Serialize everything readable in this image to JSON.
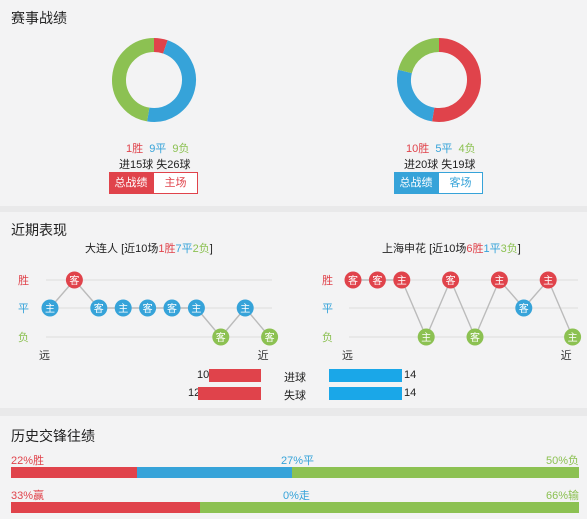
{
  "sections": {
    "record": "赛事战绩",
    "recent": "近期表现",
    "h2h": "历史交锋往绩"
  },
  "left": {
    "wins": "1胜",
    "draws": "9平",
    "losses": "9负",
    "goals": "进15球 失26球",
    "tab_active": "总战绩",
    "tab_other": "主场",
    "donut": {
      "win": 1,
      "draw": 9,
      "loss": 9
    }
  },
  "right": {
    "wins": "10胜",
    "draws": "5平",
    "losses": "4负",
    "goals": "进20球 失19球",
    "tab_active": "总战绩",
    "tab_other": "客场",
    "donut": {
      "win": 10,
      "draw": 5,
      "loss": 4
    }
  },
  "recent": {
    "left_team": {
      "name": "大连人",
      "prefix": "[近10场",
      "w": "1胜",
      "d": "7平",
      "l": "2负",
      "suffix": "]"
    },
    "right_team": {
      "name": "上海申花",
      "prefix": "[近10场",
      "w": "6胜",
      "d": "1平",
      "l": "3负",
      "suffix": "]"
    },
    "y_labels": {
      "win": "胜",
      "draw": "平",
      "loss": "负"
    },
    "far": "远",
    "near": "近",
    "left_results": [
      {
        "r": "平",
        "t": "主"
      },
      {
        "r": "胜",
        "t": "客"
      },
      {
        "r": "平",
        "t": "客"
      },
      {
        "r": "平",
        "t": "主"
      },
      {
        "r": "平",
        "t": "客"
      },
      {
        "r": "平",
        "t": "客"
      },
      {
        "r": "平",
        "t": "主"
      },
      {
        "r": "负",
        "t": "客"
      },
      {
        "r": "平",
        "t": "主"
      },
      {
        "r": "负",
        "t": "客"
      }
    ],
    "right_results": [
      {
        "r": "胜",
        "t": "客"
      },
      {
        "r": "胜",
        "t": "客"
      },
      {
        "r": "胜",
        "t": "主"
      },
      {
        "r": "负",
        "t": "主"
      },
      {
        "r": "胜",
        "t": "客"
      },
      {
        "r": "负",
        "t": "客"
      },
      {
        "r": "胜",
        "t": "主"
      },
      {
        "r": "平",
        "t": "客"
      },
      {
        "r": "胜",
        "t": "主"
      },
      {
        "r": "负",
        "t": "主"
      }
    ],
    "scored_label": "进球",
    "conceded_label": "失球",
    "left_scored": "10",
    "left_conceded": "12",
    "right_scored": "14",
    "right_conceded": "14",
    "bars": {
      "left_scored": 10,
      "left_conceded": 12,
      "right_scored": 14,
      "right_conceded": 14
    }
  },
  "h2h": {
    "row1": {
      "win": "22%胜",
      "draw": "27%平",
      "loss": "50%负",
      "win_pct": 22,
      "draw_pct": 27,
      "loss_pct": 50
    },
    "row2": {
      "win": "33%赢",
      "draw": "0%走",
      "loss": "66%输",
      "win_pct": 33,
      "draw_pct": 0,
      "loss_pct": 66
    }
  },
  "colors": {
    "win": "#e0434b",
    "draw": "#36a3d9",
    "loss": "#8cc152"
  }
}
